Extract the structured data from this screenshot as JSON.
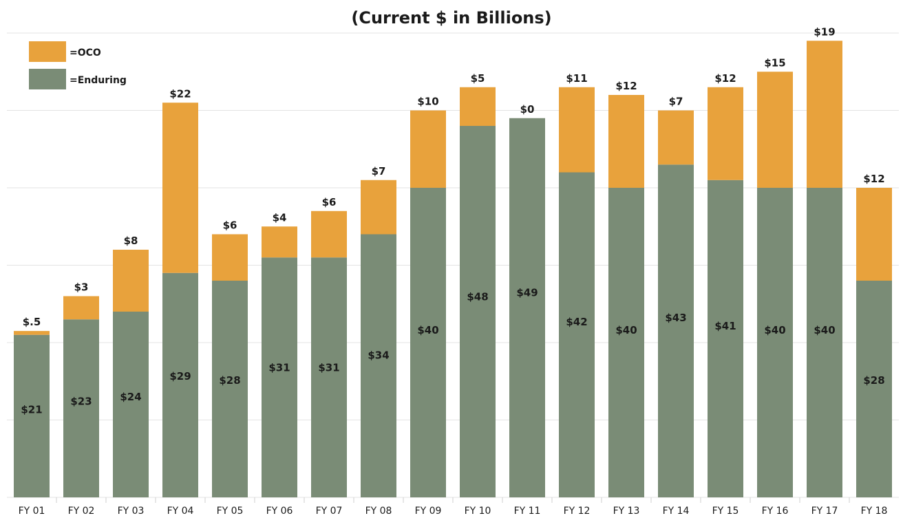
{
  "chart_data": {
    "type": "bar",
    "stacked": true,
    "title": "(Current $ in Billions)",
    "categories": [
      "FY 01",
      "FY 02",
      "FY 03",
      "FY 04",
      "FY 05",
      "FY 06",
      "FY 07",
      "FY 08",
      "FY 09",
      "FY 10",
      "FY 11",
      "FY 12",
      "FY 13",
      "FY 14",
      "FY 15",
      "FY 16",
      "FY 17",
      "FY 18"
    ],
    "series": [
      {
        "key": "enduring",
        "name": "=Enduring",
        "color": "#7a8c76",
        "values": [
          21,
          23,
          24,
          29,
          28,
          31,
          31,
          34,
          40,
          48,
          49,
          42,
          40,
          43,
          41,
          40,
          40,
          28
        ],
        "labels": [
          "$21",
          "$23",
          "$24",
          "$29",
          "$28",
          "$31",
          "$31",
          "$34",
          "$40",
          "$48",
          "$49",
          "$42",
          "$40",
          "$43",
          "$41",
          "$40",
          "$40",
          "$28"
        ]
      },
      {
        "key": "oco",
        "name": "=OCO",
        "color": "#e8a23c",
        "values": [
          0.5,
          3,
          8,
          22,
          6,
          4,
          6,
          7,
          10,
          5,
          0,
          11,
          12,
          7,
          12,
          15,
          19,
          12
        ],
        "labels": [
          "$.5",
          "$3",
          "$8",
          "$22",
          "$6",
          "$4",
          "$6",
          "$7",
          "$10",
          "$5",
          "$0",
          "$11",
          "$12",
          "$7",
          "$12",
          "$15",
          "$19",
          "$12"
        ]
      }
    ],
    "ylim": [
      0,
      60
    ],
    "grid": true,
    "legend": "top-left"
  }
}
